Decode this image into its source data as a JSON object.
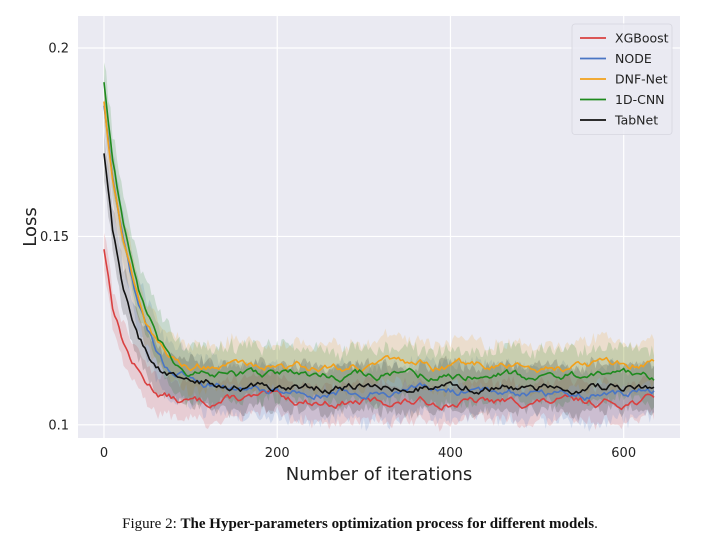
{
  "chart_data": {
    "type": "line",
    "title": "",
    "xlabel": "Number of iterations",
    "ylabel": "Loss",
    "xlim": [
      -30,
      665
    ],
    "ylim": [
      0.0965,
      0.2085
    ],
    "xticks": [
      0,
      200,
      400,
      600
    ],
    "xtick_labels": [
      "0",
      "200",
      "400",
      "600"
    ],
    "yticks": [
      0.1,
      0.15,
      0.2
    ],
    "ytick_labels": [
      "0.1",
      "0.15",
      "0.2"
    ],
    "grid": true,
    "legend_position": "top-right",
    "series": [
      {
        "name": "XGBoost",
        "color": "#d94040",
        "x": [
          0,
          10,
          20,
          30,
          40,
          50,
          60,
          70,
          80,
          90,
          100,
          120,
          150,
          200,
          250,
          300,
          350,
          400,
          450,
          500,
          550,
          600,
          635
        ],
        "values": [
          0.147,
          0.132,
          0.124,
          0.118,
          0.114,
          0.111,
          0.109,
          0.108,
          0.107,
          0.106,
          0.106,
          0.106,
          0.107,
          0.107,
          0.106,
          0.106,
          0.106,
          0.106,
          0.106,
          0.106,
          0.106,
          0.106,
          0.107
        ],
        "band": 0.005
      },
      {
        "name": "NODE",
        "color": "#4a76c4",
        "x": [
          0,
          10,
          20,
          30,
          40,
          50,
          60,
          70,
          80,
          90,
          100,
          120,
          150,
          200,
          250,
          300,
          350,
          400,
          450,
          500,
          550,
          600,
          635
        ],
        "values": [
          0.185,
          0.165,
          0.152,
          0.141,
          0.132,
          0.125,
          0.12,
          0.116,
          0.114,
          0.113,
          0.112,
          0.111,
          0.11,
          0.109,
          0.109,
          0.109,
          0.109,
          0.109,
          0.109,
          0.109,
          0.108,
          0.108,
          0.109
        ],
        "band": 0.007
      },
      {
        "name": "DNF-Net",
        "color": "#f2a01a",
        "x": [
          0,
          10,
          20,
          30,
          40,
          50,
          60,
          70,
          80,
          90,
          100,
          120,
          150,
          200,
          250,
          300,
          350,
          400,
          450,
          500,
          550,
          600,
          635
        ],
        "values": [
          0.186,
          0.166,
          0.152,
          0.142,
          0.134,
          0.127,
          0.122,
          0.119,
          0.117,
          0.116,
          0.116,
          0.116,
          0.116,
          0.116,
          0.115,
          0.116,
          0.116,
          0.115,
          0.116,
          0.115,
          0.116,
          0.116,
          0.116
        ],
        "band": 0.006
      },
      {
        "name": "1D-CNN",
        "color": "#1e8a1e",
        "x": [
          0,
          10,
          20,
          30,
          40,
          50,
          60,
          70,
          80,
          90,
          100,
          120,
          150,
          200,
          250,
          300,
          350,
          400,
          450,
          500,
          550,
          600,
          635
        ],
        "values": [
          0.191,
          0.171,
          0.157,
          0.145,
          0.136,
          0.129,
          0.123,
          0.119,
          0.116,
          0.115,
          0.114,
          0.113,
          0.113,
          0.114,
          0.113,
          0.114,
          0.113,
          0.113,
          0.114,
          0.113,
          0.113,
          0.113,
          0.113
        ],
        "band": 0.007
      },
      {
        "name": "TabNet",
        "color": "#111111",
        "x": [
          0,
          10,
          20,
          30,
          40,
          50,
          60,
          70,
          80,
          90,
          100,
          120,
          150,
          200,
          250,
          300,
          350,
          400,
          450,
          500,
          550,
          600,
          635
        ],
        "values": [
          0.172,
          0.152,
          0.139,
          0.13,
          0.124,
          0.119,
          0.116,
          0.114,
          0.113,
          0.112,
          0.111,
          0.111,
          0.11,
          0.11,
          0.11,
          0.11,
          0.11,
          0.11,
          0.11,
          0.11,
          0.11,
          0.11,
          0.11
        ],
        "band": 0.006
      }
    ]
  },
  "caption": {
    "prefix": "Figure 2: ",
    "bold": "The Hyper-parameters optimization process for different models",
    "suffix": "."
  }
}
